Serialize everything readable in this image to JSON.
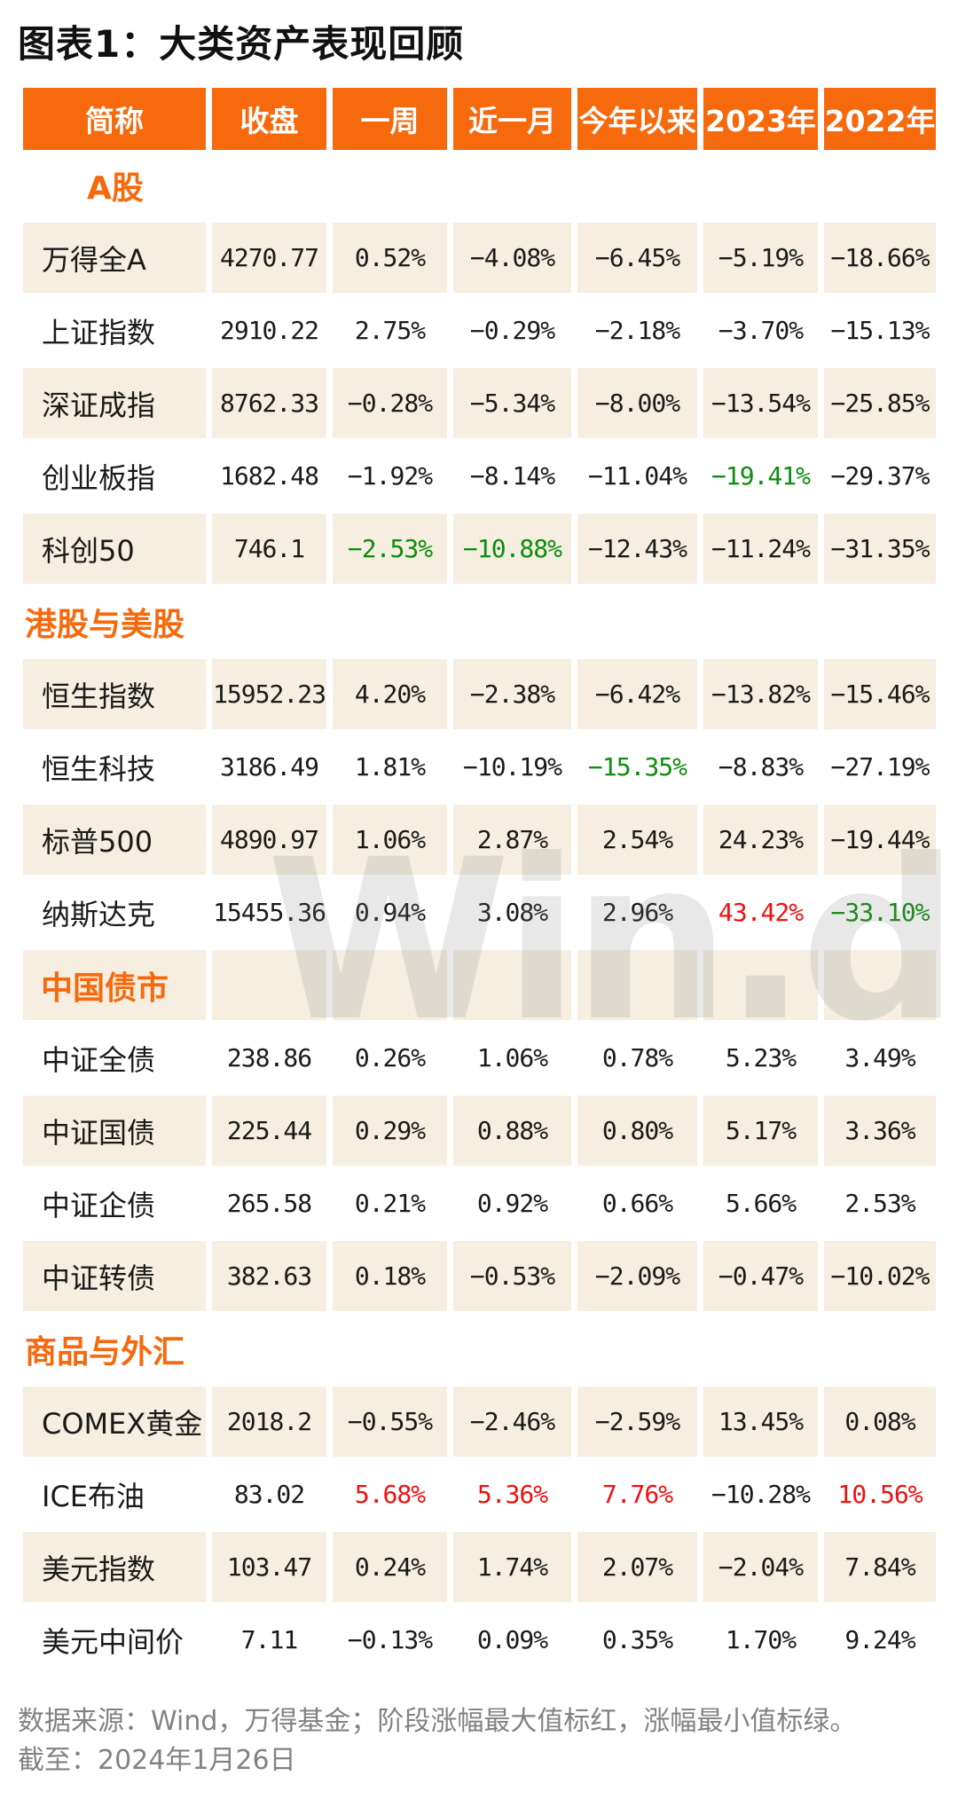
{
  "page": {
    "title": "图表1：大类资产表现回顾"
  },
  "colors": {
    "header_orange": "#f6690d",
    "row_beige": "#f5eee1",
    "highlight_red": "#ee1111",
    "highlight_green": "#0e8c0e",
    "footer_gray": "#828282"
  },
  "watermark": "Win.d",
  "table": {
    "headers": [
      "简称",
      "收盘",
      "一周",
      "近一月",
      "今年以来",
      "2023年",
      "2022年"
    ],
    "rows": [
      {
        "type": "section",
        "label": "A股",
        "indent": 2
      },
      {
        "type": "data",
        "label": "万得全A",
        "values": [
          "4270.77",
          "0.52%",
          "-4.08%",
          "-6.45%",
          "-5.19%",
          "-18.66%"
        ]
      },
      {
        "type": "data",
        "label": "上证指数",
        "values": [
          "2910.22",
          "2.75%",
          "-0.29%",
          "-2.18%",
          "-3.70%",
          "-15.13%"
        ]
      },
      {
        "type": "data",
        "label": "深证成指",
        "values": [
          "8762.33",
          "-0.28%",
          "-5.34%",
          "-8.00%",
          "-13.54%",
          "-25.85%"
        ]
      },
      {
        "type": "data",
        "label": "创业板指",
        "values": [
          "1682.48",
          "-1.92%",
          "-8.14%",
          "-11.04%",
          "-19.41%",
          "-29.37%"
        ],
        "highlights": {
          "4": "green"
        }
      },
      {
        "type": "data",
        "label": "科创50",
        "values": [
          "746.1",
          "-2.53%",
          "-10.88%",
          "-12.43%",
          "-11.24%",
          "-31.35%"
        ],
        "highlights": {
          "1": "green",
          "2": "green"
        }
      },
      {
        "type": "section",
        "label": "港股与美股",
        "indent": 0
      },
      {
        "type": "data",
        "label": "恒生指数",
        "values": [
          "15952.23",
          "4.20%",
          "-2.38%",
          "-6.42%",
          "-13.82%",
          "-15.46%"
        ]
      },
      {
        "type": "data",
        "label": "恒生科技",
        "values": [
          "3186.49",
          "1.81%",
          "-10.19%",
          "-15.35%",
          "-8.83%",
          "-27.19%"
        ],
        "highlights": {
          "3": "green"
        }
      },
      {
        "type": "data",
        "label": "标普500",
        "values": [
          "4890.97",
          "1.06%",
          "2.87%",
          "2.54%",
          "24.23%",
          "-19.44%"
        ]
      },
      {
        "type": "data",
        "label": "纳斯达克",
        "values": [
          "15455.36",
          "0.94%",
          "3.08%",
          "2.96%",
          "43.42%",
          "-33.10%"
        ],
        "highlights": {
          "4": "red",
          "5": "green"
        }
      },
      {
        "type": "section",
        "label": "中国债市",
        "indent": 1
      },
      {
        "type": "data",
        "label": "中证全债",
        "values": [
          "238.86",
          "0.26%",
          "1.06%",
          "0.78%",
          "5.23%",
          "3.49%"
        ]
      },
      {
        "type": "data",
        "label": "中证国债",
        "values": [
          "225.44",
          "0.29%",
          "0.88%",
          "0.80%",
          "5.17%",
          "3.36%"
        ]
      },
      {
        "type": "data",
        "label": "中证企债",
        "values": [
          "265.58",
          "0.21%",
          "0.92%",
          "0.66%",
          "5.66%",
          "2.53%"
        ]
      },
      {
        "type": "data",
        "label": "中证转债",
        "values": [
          "382.63",
          "0.18%",
          "-0.53%",
          "-2.09%",
          "-0.47%",
          "-10.02%"
        ]
      },
      {
        "type": "section",
        "label": "商品与外汇",
        "indent": 0
      },
      {
        "type": "data",
        "label": "COMEX黄金",
        "values": [
          "2018.2",
          "-0.55%",
          "-2.46%",
          "-2.59%",
          "13.45%",
          "0.08%"
        ]
      },
      {
        "type": "data",
        "label": "ICE布油",
        "values": [
          "83.02",
          "5.68%",
          "5.36%",
          "7.76%",
          "-10.28%",
          "10.56%"
        ],
        "highlights": {
          "1": "red",
          "2": "red",
          "3": "red",
          "5": "red"
        }
      },
      {
        "type": "data",
        "label": "美元指数",
        "values": [
          "103.47",
          "0.24%",
          "1.74%",
          "2.07%",
          "-2.04%",
          "7.84%"
        ]
      },
      {
        "type": "data",
        "label": "美元中间价",
        "values": [
          "7.11",
          "-0.13%",
          "0.09%",
          "0.35%",
          "1.70%",
          "9.24%"
        ]
      }
    ]
  },
  "footer": {
    "line1": "数据来源：Wind，万得基金；阶段涨幅最大值标红，涨幅最小值标绿。",
    "line2": "截至：2024年1月26日"
  }
}
